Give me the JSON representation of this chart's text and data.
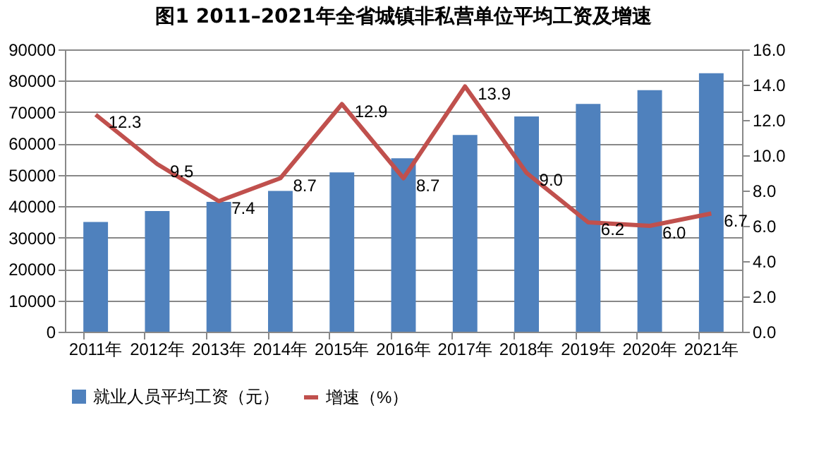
{
  "chart_data": {
    "type": "bar",
    "title": "图1 2011–2021年全省城镇非私营单位平均工资及增速",
    "categories": [
      "2011年",
      "2012年",
      "2013年",
      "2014年",
      "2015年",
      "2016年",
      "2017年",
      "2018年",
      "2019年",
      "2020年",
      "2021年"
    ],
    "series": [
      {
        "name": "就业人员平均工资（元）",
        "color": "#4f81bd",
        "values": [
          35000,
          38500,
          41400,
          44900,
          50800,
          55300,
          62700,
          68600,
          72600,
          77000,
          82400
        ]
      },
      {
        "name": "增速（%）",
        "type": "line",
        "axis": "y2",
        "color": "#c0504d",
        "values": [
          12.3,
          9.5,
          7.4,
          8.7,
          12.9,
          8.7,
          13.9,
          9.0,
          6.2,
          6.0,
          6.7
        ],
        "value_labels": [
          "12.3",
          "9.5",
          "7.4",
          "8.7",
          "12.9",
          "8.7",
          "13.9",
          "9.0",
          "6.2",
          "6.0",
          "6.7"
        ]
      }
    ],
    "ylim": [
      0,
      90000
    ],
    "yticks": [
      0,
      10000,
      20000,
      30000,
      40000,
      50000,
      60000,
      70000,
      80000,
      90000
    ],
    "y2lim": [
      0,
      16
    ],
    "y2ticks": [
      {
        "value": 0,
        "label": "0.0"
      },
      {
        "value": 2,
        "label": "2.0"
      },
      {
        "value": 4,
        "label": "4.0"
      },
      {
        "value": 6,
        "label": "6.0"
      },
      {
        "value": 8,
        "label": "8.0"
      },
      {
        "value": 10,
        "label": "10.0"
      },
      {
        "value": 12,
        "label": "12.0"
      },
      {
        "value": 14,
        "label": "14.0"
      },
      {
        "value": 16,
        "label": "16.0"
      }
    ],
    "grid": "y",
    "legend": "bottom"
  }
}
